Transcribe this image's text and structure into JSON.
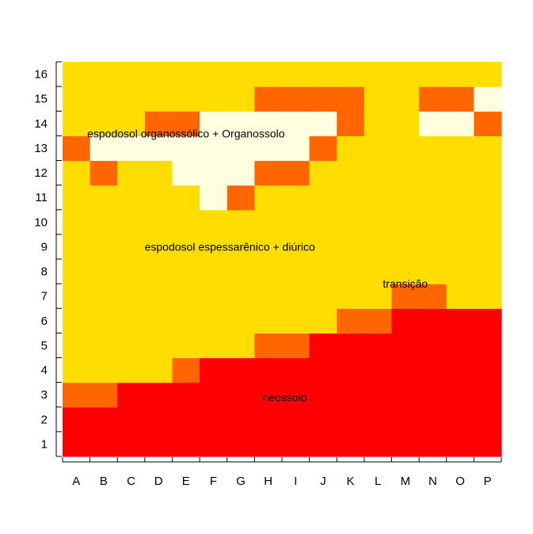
{
  "chart_data": {
    "type": "heatmap",
    "title": "",
    "xlabel": "",
    "ylabel": "",
    "x_categories": [
      "A",
      "B",
      "C",
      "D",
      "E",
      "F",
      "G",
      "H",
      "I",
      "J",
      "K",
      "L",
      "M",
      "N",
      "O",
      "P"
    ],
    "y_categories": [
      "1",
      "2",
      "3",
      "4",
      "5",
      "6",
      "7",
      "8",
      "9",
      "10",
      "11",
      "12",
      "13",
      "14",
      "15",
      "16"
    ],
    "grid": false,
    "legend": "none",
    "color_scale": {
      "0": "#FF0000",
      "1": "#FF6600",
      "2": "#FFDD00",
      "3": "#FFFFE0"
    },
    "rows_bottom_to_top": [
      [
        0,
        0,
        0,
        0,
        0,
        0,
        0,
        0,
        0,
        0,
        0,
        0,
        0,
        0,
        0,
        0
      ],
      [
        0,
        0,
        0,
        0,
        0,
        0,
        0,
        0,
        0,
        0,
        0,
        0,
        0,
        0,
        0,
        0
      ],
      [
        1,
        1,
        0,
        0,
        0,
        0,
        0,
        0,
        0,
        0,
        0,
        0,
        0,
        0,
        0,
        0
      ],
      [
        2,
        2,
        2,
        2,
        1,
        0,
        0,
        0,
        0,
        0,
        0,
        0,
        0,
        0,
        0,
        0
      ],
      [
        2,
        2,
        2,
        2,
        2,
        2,
        2,
        1,
        1,
        0,
        0,
        0,
        0,
        0,
        0,
        0
      ],
      [
        2,
        2,
        2,
        2,
        2,
        2,
        2,
        2,
        2,
        2,
        1,
        1,
        0,
        0,
        0,
        0
      ],
      [
        2,
        2,
        2,
        2,
        2,
        2,
        2,
        2,
        2,
        2,
        2,
        2,
        1,
        1,
        2,
        2
      ],
      [
        2,
        2,
        2,
        2,
        2,
        2,
        2,
        2,
        2,
        2,
        2,
        2,
        2,
        2,
        2,
        2
      ],
      [
        2,
        2,
        2,
        2,
        2,
        2,
        2,
        2,
        2,
        2,
        2,
        2,
        2,
        2,
        2,
        2
      ],
      [
        2,
        2,
        2,
        2,
        2,
        2,
        2,
        2,
        2,
        2,
        2,
        2,
        2,
        2,
        2,
        2
      ],
      [
        2,
        2,
        2,
        2,
        2,
        3,
        1,
        2,
        2,
        2,
        2,
        2,
        2,
        2,
        2,
        2
      ],
      [
        2,
        1,
        2,
        2,
        3,
        3,
        3,
        1,
        1,
        2,
        2,
        2,
        2,
        2,
        2,
        2
      ],
      [
        1,
        3,
        3,
        3,
        3,
        3,
        3,
        3,
        3,
        1,
        2,
        2,
        2,
        2,
        2,
        2
      ],
      [
        2,
        2,
        2,
        1,
        1,
        3,
        3,
        3,
        3,
        3,
        1,
        2,
        2,
        3,
        3,
        1
      ],
      [
        2,
        2,
        2,
        2,
        2,
        2,
        2,
        1,
        1,
        1,
        1,
        2,
        2,
        1,
        1,
        3
      ],
      [
        2,
        2,
        2,
        2,
        2,
        2,
        2,
        2,
        2,
        2,
        2,
        2,
        2,
        2,
        2,
        2
      ]
    ],
    "annotations": [
      {
        "text": "espodosol organossólico + Organossolo",
        "x": 4.5,
        "y": 13.1
      },
      {
        "text": "espodosol espessarênico + diúrico",
        "x": 6.1,
        "y": 8.5
      },
      {
        "text": "transição",
        "x": 12.5,
        "y": 7.0
      },
      {
        "text": "neossolo",
        "x": 8.1,
        "y": 2.4
      }
    ]
  }
}
